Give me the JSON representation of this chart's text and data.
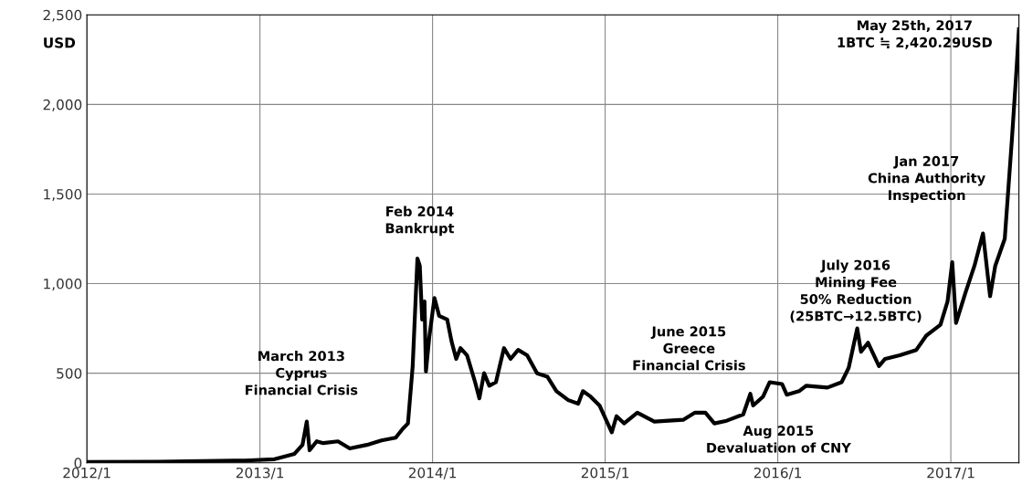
{
  "chart_data": {
    "type": "line",
    "ylabel": "USD",
    "x": [
      "2012-01-01",
      "2012-06-01",
      "2012-12-01",
      "2013-02-01",
      "2013-03-15",
      "2013-04-01",
      "2013-04-10",
      "2013-04-16",
      "2013-05-01",
      "2013-05-15",
      "2013-06-15",
      "2013-07-10",
      "2013-08-15",
      "2013-09-15",
      "2013-10-15",
      "2013-10-30",
      "2013-11-10",
      "2013-11-20",
      "2013-11-30",
      "2013-12-05",
      "2013-12-10",
      "2013-12-15",
      "2013-12-18",
      "2013-12-25",
      "2014-01-05",
      "2014-01-15",
      "2014-02-01",
      "2014-02-10",
      "2014-02-20",
      "2014-03-01",
      "2014-03-15",
      "2014-04-01",
      "2014-04-10",
      "2014-04-20",
      "2014-05-01",
      "2014-05-15",
      "2014-06-01",
      "2014-06-15",
      "2014-07-01",
      "2014-07-20",
      "2014-08-10",
      "2014-09-01",
      "2014-09-20",
      "2014-10-15",
      "2014-11-05",
      "2014-11-15",
      "2014-12-01",
      "2014-12-20",
      "2015-01-15",
      "2015-01-25",
      "2015-02-10",
      "2015-03-10",
      "2015-04-15",
      "2015-05-15",
      "2015-06-15",
      "2015-07-10",
      "2015-08-01",
      "2015-08-20",
      "2015-09-15",
      "2015-10-20",
      "2015-11-04",
      "2015-11-10",
      "2015-12-01",
      "2015-12-15",
      "2016-01-10",
      "2016-01-20",
      "2016-02-15",
      "2016-03-01",
      "2016-04-15",
      "2016-05-15",
      "2016-05-30",
      "2016-06-17",
      "2016-06-25",
      "2016-07-10",
      "2016-08-02",
      "2016-08-15",
      "2016-09-15",
      "2016-10-20",
      "2016-11-10",
      "2016-12-10",
      "2016-12-25",
      "2017-01-04",
      "2017-01-12",
      "2017-02-01",
      "2017-02-20",
      "2017-03-10",
      "2017-03-25",
      "2017-04-05",
      "2017-04-25",
      "2017-05-10",
      "2017-05-20",
      "2017-05-25"
    ],
    "series": [
      {
        "color": "#000000",
        "values": [
          5,
          6,
          13,
          20,
          50,
          100,
          230,
          70,
          120,
          110,
          120,
          80,
          100,
          125,
          140,
          190,
          220,
          540,
          1140,
          1100,
          800,
          900,
          510,
          700,
          920,
          820,
          800,
          680,
          580,
          640,
          600,
          450,
          360,
          500,
          430,
          450,
          640,
          580,
          630,
          600,
          500,
          480,
          400,
          350,
          330,
          400,
          370,
          320,
          170,
          260,
          220,
          280,
          230,
          235,
          240,
          280,
          280,
          220,
          235,
          270,
          385,
          320,
          370,
          450,
          440,
          380,
          400,
          430,
          420,
          450,
          530,
          750,
          620,
          670,
          540,
          580,
          600,
          630,
          710,
          770,
          900,
          1120,
          780,
          950,
          1100,
          1280,
          930,
          1100,
          1250,
          1800,
          2200,
          2420
        ]
      }
    ],
    "xlim": [
      "2012-01-01",
      "2017-05-25"
    ],
    "xticks": [
      {
        "value": "2012-01-01",
        "label": "2012/1"
      },
      {
        "value": "2013-01-01",
        "label": "2013/1"
      },
      {
        "value": "2014-01-01",
        "label": "2014/1"
      },
      {
        "value": "2015-01-01",
        "label": "2015/1"
      },
      {
        "value": "2016-01-01",
        "label": "2016/1"
      },
      {
        "value": "2017-01-01",
        "label": "2017/1"
      }
    ],
    "ylim": [
      0,
      2500
    ],
    "yticks": [
      0,
      500,
      {
        "value": 1000,
        "label": "1,000"
      },
      {
        "value": 1500,
        "label": "1,500"
      },
      {
        "value": 2000,
        "label": "2,000"
      },
      {
        "value": 2500,
        "label": "2,500"
      }
    ],
    "grid": true,
    "line_style": "solid",
    "annotations": [
      "March 2013\nCyprus\nFinancial Crisis",
      "Feb 2014\nBankrupt",
      "June 2015\nGreece\nFinancial Crisis",
      "Aug 2015\nDevaluation of CNY",
      "July 2016\nMining Fee\n50% Reduction\n(25BTC→12.5BTC)",
      "Jan 2017\nChina Authority\nInspection",
      "May 25th, 2017\n1BTC ≒ 2,420.29USD"
    ]
  }
}
